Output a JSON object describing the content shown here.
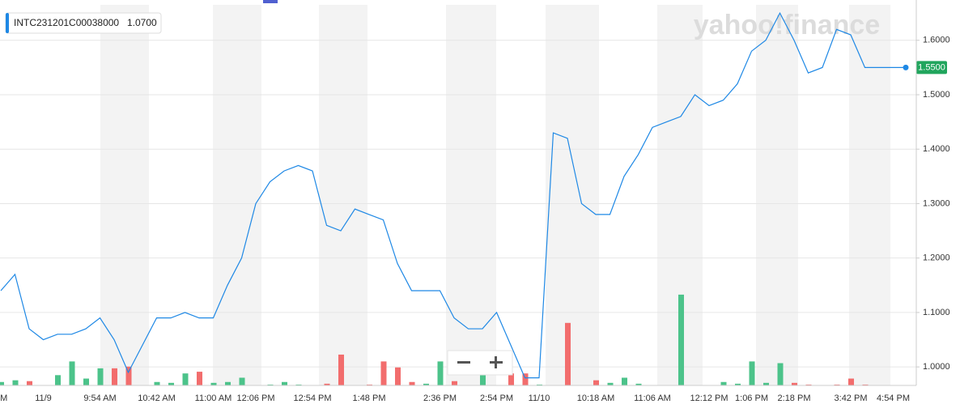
{
  "chart_data": {
    "type": "line",
    "watermark": "yahoo!finance",
    "legend_value": "1.0700",
    "last_value_label": "1.5500",
    "grid": true,
    "ylim": [
      0.966,
      1.674
    ],
    "yticks": [
      {
        "value": 1.0,
        "label": "1.0000"
      },
      {
        "value": 1.1,
        "label": "1.1000"
      },
      {
        "value": 1.2,
        "label": "1.2000"
      },
      {
        "value": 1.3,
        "label": "1.3000"
      },
      {
        "value": 1.4,
        "label": "1.4000"
      },
      {
        "value": 1.5,
        "label": "1.5000"
      },
      {
        "value": 1.6,
        "label": "1.6000"
      }
    ],
    "categories": [
      "PM",
      null,
      null,
      "11/9",
      null,
      null,
      null,
      "9:54 AM",
      null,
      null,
      null,
      "10:42 AM",
      null,
      null,
      null,
      "11:00 AM",
      null,
      null,
      "12:06 PM",
      null,
      null,
      null,
      "12:54 PM",
      null,
      null,
      null,
      "1:48 PM",
      null,
      null,
      null,
      null,
      "2:36 PM",
      null,
      null,
      null,
      "2:54 PM",
      null,
      null,
      "11/10",
      null,
      null,
      null,
      "10:18 AM",
      null,
      null,
      null,
      "11:06 AM",
      null,
      null,
      null,
      "12:12 PM",
      null,
      null,
      "1:06 PM",
      null,
      null,
      "2:18 PM",
      null,
      null,
      null,
      "3:42 PM",
      null,
      null,
      "4:54 PM",
      null
    ],
    "series": [
      {
        "name": "INTC231201C00038000",
        "color": "#1e88e5",
        "values": [
          1.14,
          1.17,
          1.07,
          1.05,
          1.06,
          1.06,
          1.07,
          1.09,
          1.05,
          0.99,
          1.04,
          1.09,
          1.09,
          1.1,
          1.09,
          1.09,
          1.15,
          1.2,
          1.3,
          1.34,
          1.36,
          1.37,
          1.36,
          1.26,
          1.25,
          1.29,
          1.28,
          1.27,
          1.19,
          1.14,
          1.14,
          1.14,
          1.09,
          1.07,
          1.07,
          1.1,
          1.04,
          0.98,
          0.98,
          1.43,
          1.42,
          1.3,
          1.28,
          1.28,
          1.35,
          1.39,
          1.44,
          1.45,
          1.46,
          1.5,
          1.48,
          1.49,
          1.52,
          1.58,
          1.6,
          1.65,
          1.6,
          1.54,
          1.55,
          1.62,
          1.61,
          1.55,
          1.55,
          1.55,
          1.55
        ]
      }
    ],
    "volume_lim": [
      0,
      450
    ],
    "volume_up_color": "#4cc38a",
    "volume_down_color": "#f26d6d",
    "volume_up": [
      4,
      6,
      null,
      null,
      12,
      28,
      8,
      20,
      null,
      null,
      null,
      4,
      3,
      14,
      null,
      3,
      4,
      9,
      null,
      1,
      4,
      1,
      null,
      null,
      null,
      null,
      null,
      null,
      null,
      null,
      2,
      28,
      null,
      null,
      14,
      null,
      null,
      null,
      1,
      null,
      null,
      null,
      null,
      3,
      9,
      2,
      null,
      null,
      106,
      null,
      null,
      4,
      2,
      28,
      3,
      26,
      null,
      null,
      null,
      null,
      null,
      null,
      null,
      null,
      null
    ],
    "volume_down": [
      null,
      null,
      5,
      null,
      null,
      null,
      null,
      null,
      20,
      22,
      null,
      null,
      null,
      null,
      16,
      null,
      null,
      null,
      null,
      null,
      null,
      null,
      null,
      2,
      36,
      null,
      1,
      28,
      21,
      4,
      null,
      null,
      5,
      null,
      null,
      null,
      14,
      14,
      null,
      null,
      73,
      null,
      6,
      null,
      null,
      null,
      null,
      null,
      null,
      null,
      null,
      null,
      null,
      null,
      null,
      null,
      3,
      1,
      null,
      1,
      8,
      1,
      null,
      null,
      null
    ]
  }
}
